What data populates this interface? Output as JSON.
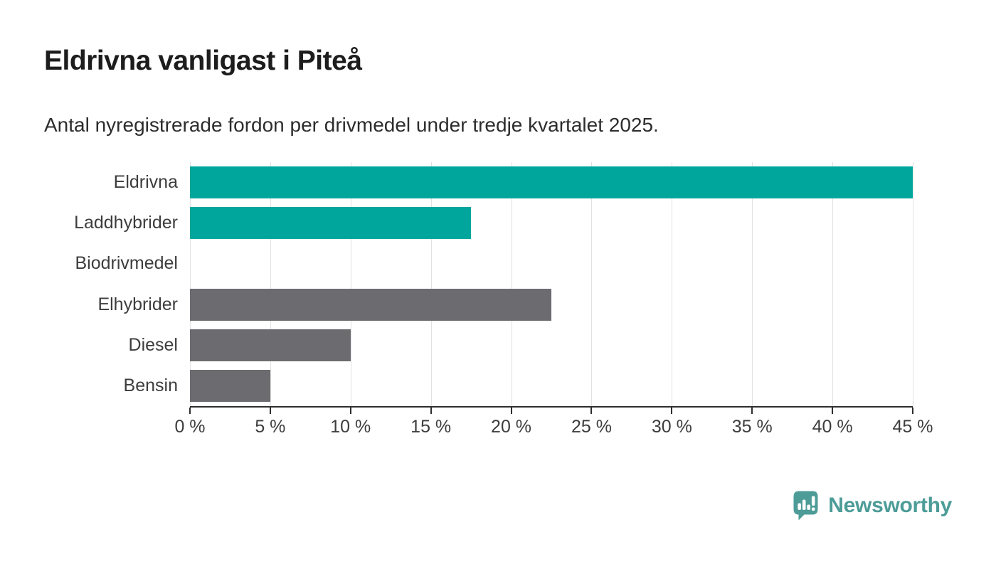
{
  "chart_data": {
    "type": "bar",
    "orientation": "horizontal",
    "title": "Eldrivna vanligast i Piteå",
    "subtitle": "Antal nyregistrerade fordon per drivmedel under tredje kvartalet 2025.",
    "categories": [
      "Eldrivna",
      "Laddhybrider",
      "Biodrivmedel",
      "Elhybrider",
      "Diesel",
      "Bensin"
    ],
    "values": [
      45,
      17.5,
      0,
      22.5,
      10,
      5
    ],
    "unit": "%",
    "bar_colors": [
      "#00a69c",
      "#00a69c",
      "#00a69c",
      "#6b6b70",
      "#6b6b70",
      "#6b6b70"
    ],
    "accent_color": "#00a69c",
    "neutral_color": "#6b6b70",
    "xlim": [
      0,
      45
    ],
    "x_tick_values": [
      0,
      5,
      10,
      15,
      20,
      25,
      30,
      35,
      40,
      45
    ],
    "x_tick_labels": [
      "0 %",
      "5 %",
      "10 %",
      "15 %",
      "20 %",
      "25 %",
      "30 %",
      "35 %",
      "40 %",
      "45 %"
    ],
    "grid": "vertical",
    "legend": "none",
    "gridline_color": "#e1e1e1",
    "axis_color": "#2e2e2e"
  },
  "footer": {
    "brand": "Newsworthy",
    "brand_color": "#4d9c98",
    "logo_icon": "speech-bubble-bar-chart-icon"
  }
}
